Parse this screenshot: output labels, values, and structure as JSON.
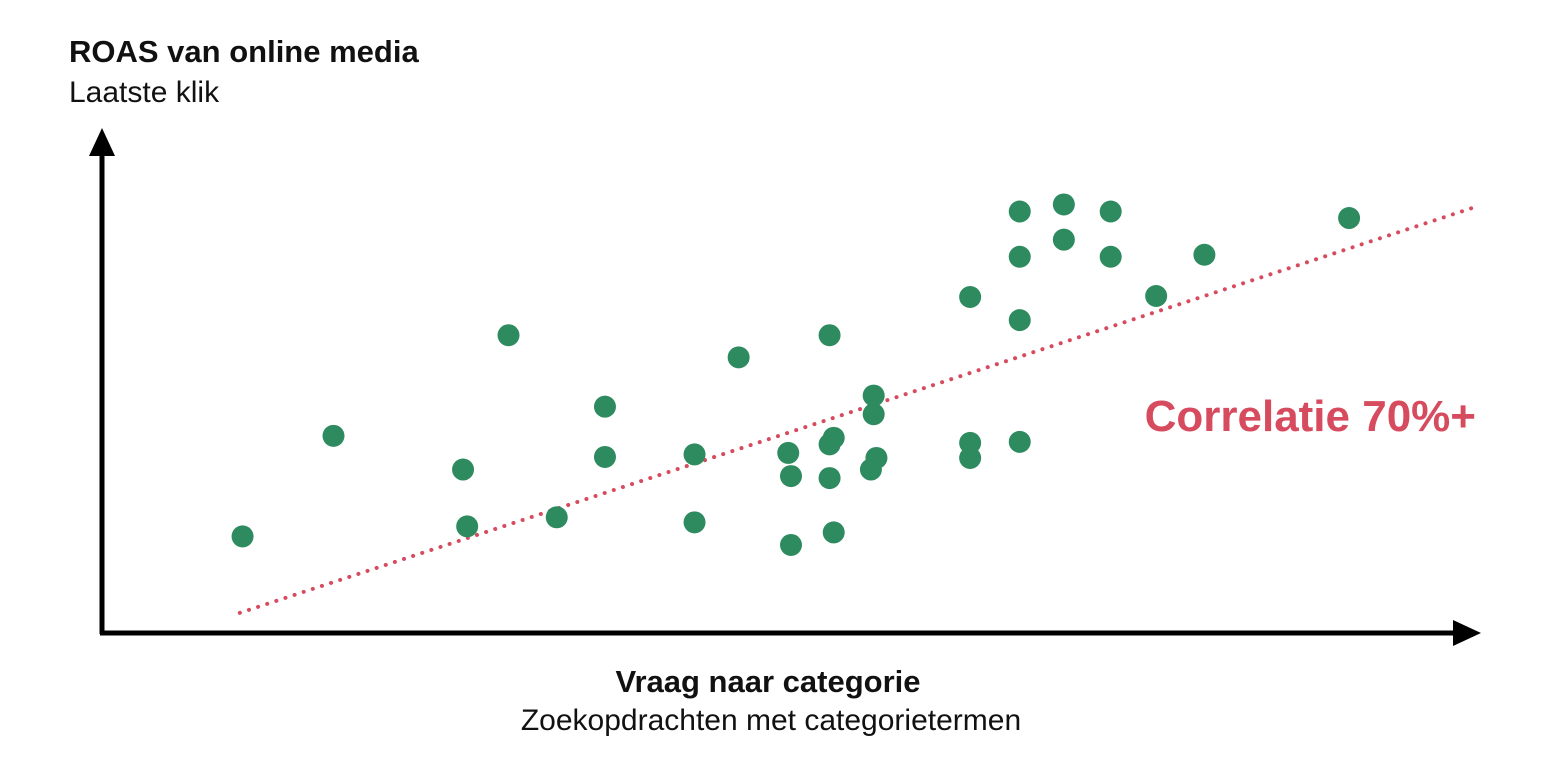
{
  "chart_data": {
    "type": "scatter",
    "ylabel": "ROAS van online media",
    "ylabel_sub": "Laatste klik",
    "xlabel": "Vraag naar categorie",
    "xlabel_sub": "Zoekopdrachten met categorietermen",
    "annotation": "Correlatie 70%+",
    "xlim": [
      0,
      100
    ],
    "ylim": [
      0,
      100
    ],
    "grid": false,
    "axis_ticks": false,
    "points": [
      {
        "x": 10.2,
        "y": 19.2
      },
      {
        "x": 16.8,
        "y": 39.2
      },
      {
        "x": 26.2,
        "y": 32.5
      },
      {
        "x": 26.5,
        "y": 21.2
      },
      {
        "x": 29.5,
        "y": 59.2
      },
      {
        "x": 33.0,
        "y": 23.0
      },
      {
        "x": 36.5,
        "y": 45.0
      },
      {
        "x": 36.5,
        "y": 35.0
      },
      {
        "x": 43.0,
        "y": 22.0
      },
      {
        "x": 43.0,
        "y": 35.5
      },
      {
        "x": 46.2,
        "y": 54.8
      },
      {
        "x": 49.8,
        "y": 35.8
      },
      {
        "x": 50.0,
        "y": 31.2
      },
      {
        "x": 50.0,
        "y": 17.5
      },
      {
        "x": 52.8,
        "y": 59.2
      },
      {
        "x": 52.8,
        "y": 37.5
      },
      {
        "x": 53.1,
        "y": 38.8
      },
      {
        "x": 52.8,
        "y": 30.8
      },
      {
        "x": 53.1,
        "y": 20.0
      },
      {
        "x": 56.0,
        "y": 47.2
      },
      {
        "x": 56.0,
        "y": 43.5
      },
      {
        "x": 56.2,
        "y": 34.8
      },
      {
        "x": 55.8,
        "y": 32.5
      },
      {
        "x": 63.0,
        "y": 66.8
      },
      {
        "x": 63.0,
        "y": 37.8
      },
      {
        "x": 63.0,
        "y": 34.8
      },
      {
        "x": 66.6,
        "y": 62.2
      },
      {
        "x": 66.6,
        "y": 38.0
      },
      {
        "x": 66.6,
        "y": 83.8
      },
      {
        "x": 66.6,
        "y": 74.8
      },
      {
        "x": 69.8,
        "y": 85.2
      },
      {
        "x": 69.8,
        "y": 78.2
      },
      {
        "x": 73.2,
        "y": 83.8
      },
      {
        "x": 73.2,
        "y": 74.8
      },
      {
        "x": 76.5,
        "y": 67.0
      },
      {
        "x": 80.0,
        "y": 75.2
      },
      {
        "x": 90.5,
        "y": 82.5
      }
    ],
    "trendline": {
      "style": "dotted",
      "x": [
        10,
        100
      ],
      "y": [
        4,
        85
      ]
    }
  },
  "colors": {
    "point": "#2e8b5f",
    "trendline": "#d64b5e",
    "annotation": "#d64b5e",
    "axis": "#000000",
    "text": "#111111"
  }
}
